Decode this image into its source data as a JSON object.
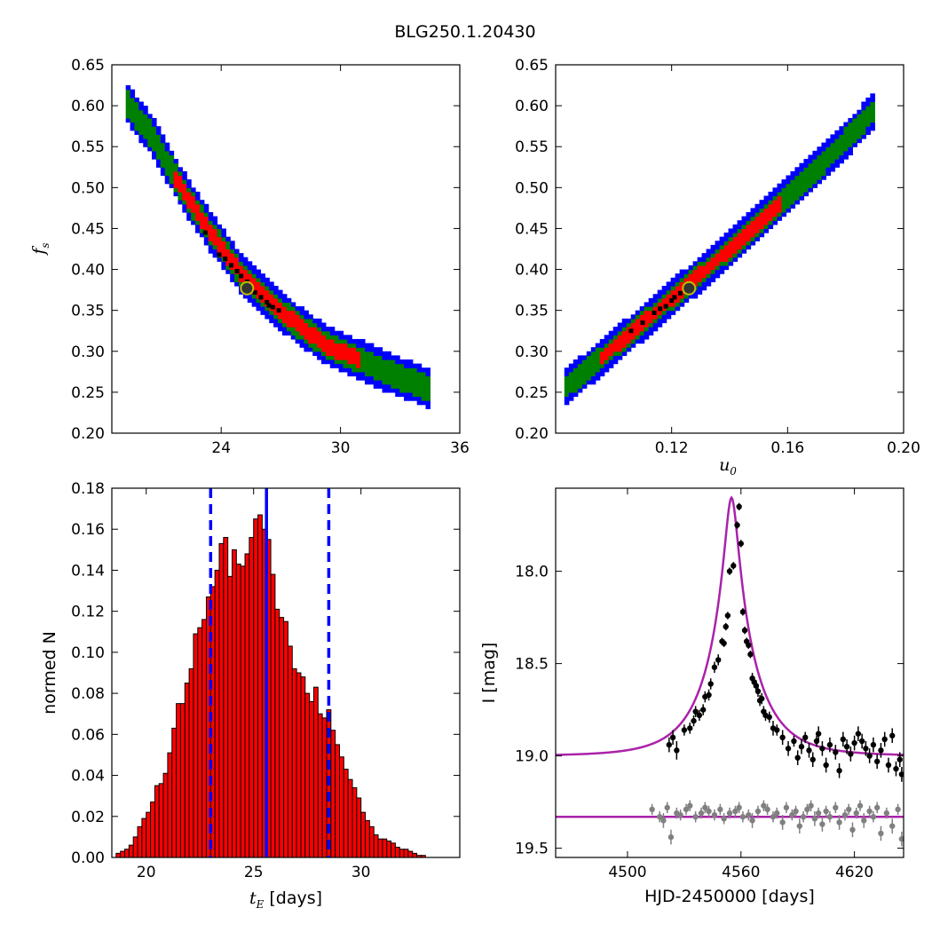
{
  "figure": {
    "suptitle": "BLG250.1.20430"
  },
  "colors": {
    "outer": "#0000ff",
    "mid": "#008000",
    "inner": "#ff0000",
    "core": "#000000",
    "marker_edge": "#bfbf00",
    "hist_fill": "#ff0000",
    "model": "#aa22aa",
    "data_black": "#000000",
    "data_gray": "#808080",
    "ci_line": "#0000ff"
  },
  "chart_data": [
    {
      "id": "panel_fs_vs_tE",
      "type": "heatmap",
      "title": "",
      "xlabel": "",
      "ylabel_symbol": "f",
      "ylabel_sub": "s",
      "xlim": [
        18.5,
        36
      ],
      "ylim": [
        0.2,
        0.65
      ],
      "xticks": [
        24,
        30,
        36
      ],
      "xtick_labels": [
        "24",
        "30",
        "36"
      ],
      "yticks": [
        0.2,
        0.25,
        0.3,
        0.35,
        0.4,
        0.45,
        0.5,
        0.55,
        0.6,
        0.65
      ],
      "ytick_labels": [
        "0.20",
        "0.25",
        "0.30",
        "0.35",
        "0.40",
        "0.45",
        "0.50",
        "0.55",
        "0.60",
        "0.65"
      ],
      "ridge": [
        [
          19.2,
          0.605
        ],
        [
          20.5,
          0.565
        ],
        [
          22.0,
          0.5
        ],
        [
          23.5,
          0.445
        ],
        [
          25.0,
          0.395
        ],
        [
          26.5,
          0.36
        ],
        [
          28.0,
          0.33
        ],
        [
          29.5,
          0.305
        ],
        [
          31.0,
          0.29
        ],
        [
          32.5,
          0.273
        ],
        [
          34.5,
          0.255
        ]
      ],
      "confidence_halfwidths": {
        "outer": 0.024,
        "mid": 0.016,
        "inner": 0.01
      },
      "inner_x_range": [
        21.5,
        31.0
      ],
      "core_points": [
        [
          23.2,
          0.445
        ],
        [
          23.9,
          0.418
        ],
        [
          24.2,
          0.413
        ],
        [
          24.5,
          0.405
        ],
        [
          24.8,
          0.398
        ],
        [
          25.0,
          0.392
        ],
        [
          25.3,
          0.385
        ],
        [
          25.7,
          0.372
        ],
        [
          26.0,
          0.366
        ],
        [
          26.3,
          0.36
        ],
        [
          26.6,
          0.354
        ],
        [
          26.9,
          0.35
        ],
        [
          26.4,
          0.356
        ]
      ],
      "best_fit": [
        25.3,
        0.377
      ]
    },
    {
      "id": "panel_fs_vs_u0",
      "type": "heatmap",
      "title": "",
      "xlabel_symbol": "u",
      "xlabel_sub": "0",
      "ylabel": "",
      "xlim": [
        0.08,
        0.2
      ],
      "ylim": [
        0.2,
        0.65
      ],
      "xticks": [
        0.12,
        0.16,
        0.2
      ],
      "xtick_labels": [
        "0.12",
        "0.16",
        "0.20"
      ],
      "yticks": [
        0.2,
        0.25,
        0.3,
        0.35,
        0.4,
        0.45,
        0.5,
        0.55,
        0.6,
        0.65
      ],
      "ytick_labels": [
        "0.20",
        "0.25",
        "0.30",
        "0.35",
        "0.40",
        "0.45",
        "0.50",
        "0.55",
        "0.60",
        "0.65"
      ],
      "ridge": [
        [
          0.083,
          0.255
        ],
        [
          0.1,
          0.305
        ],
        [
          0.12,
          0.365
        ],
        [
          0.14,
          0.425
        ],
        [
          0.16,
          0.49
        ],
        [
          0.175,
          0.54
        ],
        [
          0.19,
          0.595
        ]
      ],
      "confidence_halfwidths": {
        "outer": 0.022,
        "mid": 0.014,
        "inner": 0.009
      },
      "inner_x_range": [
        0.095,
        0.158
      ],
      "core_points": [
        [
          0.114,
          0.347
        ],
        [
          0.116,
          0.352
        ],
        [
          0.118,
          0.355
        ],
        [
          0.12,
          0.362
        ],
        [
          0.121,
          0.366
        ],
        [
          0.123,
          0.371
        ],
        [
          0.125,
          0.375
        ],
        [
          0.11,
          0.335
        ],
        [
          0.106,
          0.325
        ]
      ],
      "best_fit": [
        0.126,
        0.377
      ]
    },
    {
      "id": "panel_tE_histogram",
      "type": "bar",
      "title": "",
      "xlabel_symbol": "t",
      "xlabel_sub": "E",
      "xlabel_rest": " [days]",
      "ylabel": "normed N",
      "xlim": [
        18.4,
        34.6
      ],
      "ylim": [
        0.0,
        0.18
      ],
      "xticks": [
        20,
        25,
        30
      ],
      "xtick_labels": [
        "20",
        "25",
        "30"
      ],
      "yticks": [
        0.0,
        0.02,
        0.04,
        0.06,
        0.08,
        0.1,
        0.12,
        0.14,
        0.16,
        0.18
      ],
      "ytick_labels": [
        "0.00",
        "0.02",
        "0.04",
        "0.06",
        "0.08",
        "0.10",
        "0.12",
        "0.14",
        "0.16",
        "0.18"
      ],
      "bin_start": 18.6,
      "bin_width": 0.2,
      "values": [
        0.002,
        0.003,
        0.004,
        0.006,
        0.01,
        0.015,
        0.019,
        0.022,
        0.027,
        0.035,
        0.036,
        0.041,
        0.051,
        0.063,
        0.075,
        0.075,
        0.085,
        0.092,
        0.109,
        0.112,
        0.116,
        0.127,
        0.132,
        0.14,
        0.153,
        0.156,
        0.137,
        0.15,
        0.143,
        0.142,
        0.148,
        0.156,
        0.165,
        0.167,
        0.16,
        0.155,
        0.138,
        0.121,
        0.117,
        0.115,
        0.103,
        0.092,
        0.09,
        0.088,
        0.08,
        0.076,
        0.083,
        0.07,
        0.068,
        0.072,
        0.062,
        0.055,
        0.049,
        0.043,
        0.038,
        0.034,
        0.029,
        0.022,
        0.018,
        0.015,
        0.011,
        0.009,
        0.009,
        0.008,
        0.007,
        0.005,
        0.004,
        0.004,
        0.003,
        0.002,
        0.001,
        0.001
      ],
      "median": 25.6,
      "ci": [
        23.0,
        28.5
      ]
    },
    {
      "id": "panel_lightcurve",
      "type": "scatter",
      "title": "",
      "xlabel": "HJD-2450000 [days]",
      "ylabel": "I [mag]",
      "xlim": [
        4462,
        4646
      ],
      "ylim": [
        19.55,
        17.55
      ],
      "xticks": [
        4500,
        4560,
        4620
      ],
      "xtick_labels": [
        "4500",
        "4560",
        "4620"
      ],
      "yticks": [
        18.0,
        18.5,
        19.0,
        19.5
      ],
      "ytick_labels": [
        "18.0",
        "18.5",
        "19.0",
        "19.5"
      ],
      "model": {
        "t0": 4555,
        "tE": 25.3,
        "u0": 0.126,
        "baseline": 19.0,
        "flat": 19.33
      },
      "series": [
        {
          "color": "gray",
          "x": [
            4513,
            4517,
            4519,
            4521,
            4523,
            4526,
            4528,
            4531,
            4533,
            4536,
            4539,
            4541,
            4543,
            4546,
            4549,
            4551,
            4554,
            4557,
            4559,
            4561,
            4564,
            4566,
            4569,
            4572,
            4574,
            4577,
            4579,
            4582,
            4584,
            4587,
            4589,
            4591,
            4593,
            4595,
            4597,
            4599,
            4601,
            4603,
            4605,
            4607,
            4610,
            4612,
            4615,
            4617,
            4619,
            4621,
            4623,
            4625,
            4628,
            4630,
            4632,
            4634,
            4637,
            4640,
            4643,
            4645
          ],
          "y": [
            19.29,
            19.33,
            19.35,
            19.28,
            19.44,
            19.31,
            19.32,
            19.29,
            19.27,
            19.33,
            19.31,
            19.28,
            19.3,
            19.32,
            19.29,
            19.34,
            19.31,
            19.3,
            19.28,
            19.33,
            19.32,
            19.35,
            19.3,
            19.27,
            19.29,
            19.33,
            19.31,
            19.36,
            19.28,
            19.32,
            19.3,
            19.38,
            19.33,
            19.29,
            19.27,
            19.34,
            19.31,
            19.37,
            19.3,
            19.33,
            19.28,
            19.36,
            19.32,
            19.29,
            19.4,
            19.31,
            19.27,
            19.35,
            19.3,
            19.33,
            19.28,
            19.42,
            19.31,
            19.38,
            19.29,
            19.45
          ],
          "err": [
            0.03,
            0.03,
            0.04,
            0.03,
            0.04,
            0.03,
            0.03,
            0.03,
            0.03,
            0.03,
            0.03,
            0.03,
            0.03,
            0.03,
            0.03,
            0.03,
            0.03,
            0.03,
            0.03,
            0.03,
            0.03,
            0.04,
            0.03,
            0.03,
            0.03,
            0.03,
            0.03,
            0.04,
            0.03,
            0.03,
            0.03,
            0.04,
            0.03,
            0.03,
            0.03,
            0.04,
            0.03,
            0.04,
            0.03,
            0.03,
            0.03,
            0.04,
            0.03,
            0.03,
            0.04,
            0.03,
            0.03,
            0.04,
            0.03,
            0.03,
            0.03,
            0.04,
            0.03,
            0.04,
            0.03,
            0.04
          ]
        },
        {
          "color": "black",
          "x": [
            4522,
            4524,
            4526,
            4530,
            4533,
            4535,
            4536,
            4538,
            4540,
            4541,
            4543,
            4544,
            4546,
            4548,
            4550,
            4551,
            4552,
            4553,
            4554,
            4556,
            4558,
            4559,
            4560,
            4561,
            4562,
            4563,
            4564,
            4565,
            4566,
            4567,
            4568,
            4569,
            4570,
            4571,
            4572,
            4573,
            4575,
            4577,
            4579,
            4582,
            4585,
            4588,
            4590,
            4592,
            4594,
            4596,
            4598,
            4600,
            4601,
            4603,
            4605,
            4607,
            4610,
            4612,
            4614,
            4616,
            4618,
            4620,
            4622,
            4624,
            4626,
            4628,
            4630,
            4632,
            4634,
            4636,
            4638,
            4640,
            4642,
            4644,
            4645
          ],
          "y": [
            18.94,
            18.9,
            18.97,
            18.86,
            18.85,
            18.81,
            18.76,
            18.78,
            18.75,
            18.68,
            18.67,
            18.61,
            18.52,
            18.48,
            18.38,
            18.39,
            18.3,
            18.24,
            18.0,
            17.97,
            17.75,
            17.65,
            17.85,
            18.22,
            18.32,
            18.38,
            18.4,
            18.45,
            18.58,
            18.6,
            18.62,
            18.65,
            18.7,
            18.69,
            18.76,
            18.78,
            18.79,
            18.85,
            18.86,
            18.9,
            18.96,
            18.92,
            19.01,
            18.95,
            18.9,
            18.97,
            19.02,
            18.92,
            18.88,
            18.96,
            19.05,
            18.94,
            18.98,
            19.08,
            18.91,
            18.95,
            18.99,
            18.93,
            18.88,
            18.92,
            18.96,
            19.0,
            18.94,
            19.03,
            18.97,
            18.91,
            19.05,
            18.89,
            19.07,
            19.02,
            19.1
          ],
          "err": [
            0.04,
            0.04,
            0.05,
            0.03,
            0.03,
            0.03,
            0.03,
            0.03,
            0.03,
            0.03,
            0.03,
            0.03,
            0.03,
            0.03,
            0.02,
            0.02,
            0.02,
            0.02,
            0.02,
            0.02,
            0.02,
            0.02,
            0.02,
            0.02,
            0.02,
            0.02,
            0.02,
            0.02,
            0.03,
            0.03,
            0.03,
            0.03,
            0.03,
            0.03,
            0.03,
            0.03,
            0.03,
            0.04,
            0.03,
            0.04,
            0.04,
            0.03,
            0.04,
            0.04,
            0.03,
            0.04,
            0.04,
            0.03,
            0.04,
            0.04,
            0.04,
            0.04,
            0.04,
            0.04,
            0.04,
            0.04,
            0.04,
            0.04,
            0.04,
            0.04,
            0.04,
            0.04,
            0.04,
            0.04,
            0.04,
            0.04,
            0.04,
            0.04,
            0.04,
            0.04,
            0.04
          ]
        }
      ]
    }
  ]
}
